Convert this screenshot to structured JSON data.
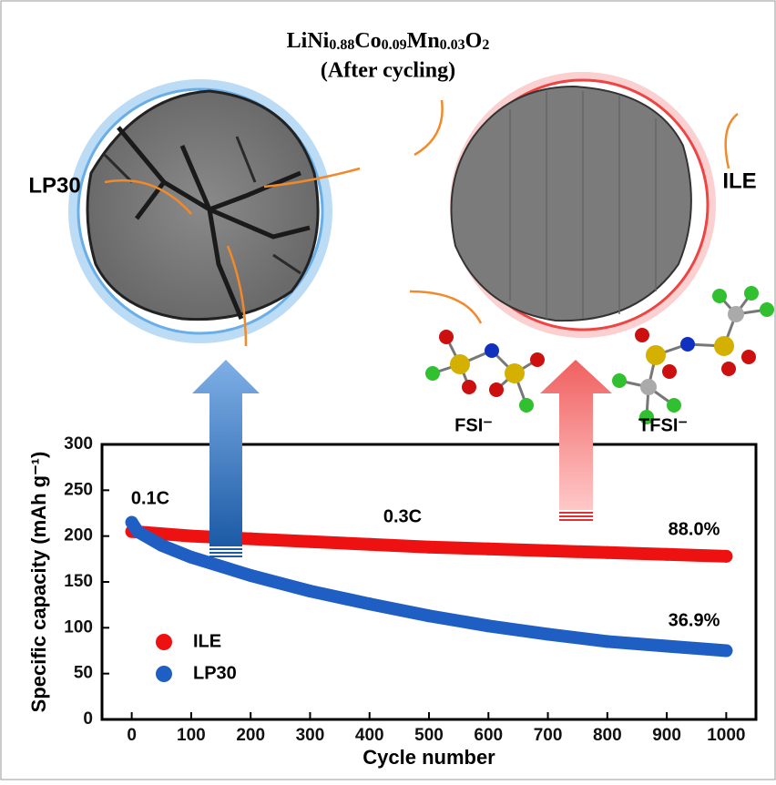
{
  "chart_data": {
    "type": "line",
    "title_parts": [
      "LiNi",
      "0.88",
      "Co",
      "0.09",
      "Mn",
      "0.03",
      "O",
      "2"
    ],
    "subtitle": "(After cycling)",
    "image_labels": [
      "LP30",
      "ILE"
    ],
    "anion_labels": [
      "FSI⁻",
      "TFSI⁻"
    ],
    "xlabel": "Cycle number",
    "ylabel": "Specific capacity (mAh g⁻¹)",
    "annotations": [
      "0.1C",
      "0.3C",
      "88.0%",
      "36.9%"
    ],
    "series": [
      {
        "name": "ILE",
        "color": "#ee1111",
        "x": [
          0,
          100,
          200,
          300,
          400,
          500,
          600,
          700,
          800,
          900,
          1000
        ],
        "values": [
          205,
          200,
          197,
          194,
          191,
          188,
          186,
          184,
          182,
          180,
          178
        ]
      },
      {
        "name": "LP30",
        "color": "#1f5fc4",
        "x": [
          0,
          10,
          50,
          100,
          200,
          300,
          400,
          500,
          600,
          700,
          800,
          900,
          1000
        ],
        "values": [
          215,
          205,
          190,
          177,
          157,
          140,
          126,
          113,
          102,
          93,
          85,
          80,
          75
        ]
      }
    ],
    "xlim": [
      -50,
      1050
    ],
    "xticks": [
      0,
      100,
      200,
      300,
      400,
      500,
      600,
      700,
      800,
      900,
      1000
    ],
    "ylim": [
      0,
      300
    ],
    "yticks": [
      0,
      50,
      100,
      150,
      200,
      250,
      300
    ]
  }
}
